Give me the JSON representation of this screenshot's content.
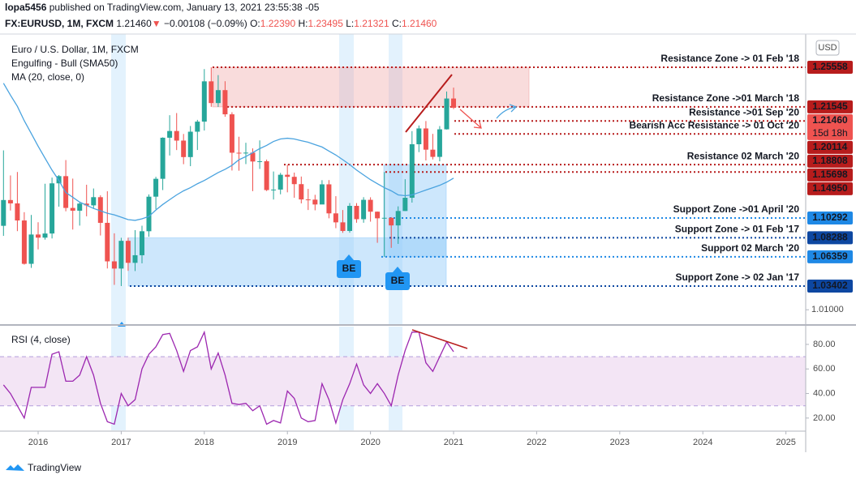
{
  "header": {
    "author": "lopa5456",
    "published": "published on TradingView.com, January 13, 2021 23:55:38 -05",
    "symbol": "FX:EURUSD, 1M, FXCM",
    "price": "1.21460",
    "arrow": "▼",
    "change": "−0.00108 (−0.09%)",
    "ohlc": [
      {
        "label": "O:",
        "value": "1.22390"
      },
      {
        "label": "H:",
        "value": "1.23495"
      },
      {
        "label": "L:",
        "value": "1.21321"
      },
      {
        "label": "C:",
        "value": "1.21460"
      }
    ]
  },
  "footer": "TradingView",
  "chart_data": [
    {
      "type": "candlestick",
      "title": "Euro / U.S. Dollar, 1M, FXCM",
      "study": "Engulfing - Bull (SMA50)",
      "axis_unit": "USD",
      "x": [
        2015.583,
        2015.667,
        2015.75,
        2015.833,
        2015.917,
        2016.0,
        2016.083,
        2016.167,
        2016.25,
        2016.333,
        2016.417,
        2016.5,
        2016.583,
        2016.667,
        2016.75,
        2016.833,
        2016.917,
        2017.0,
        2017.083,
        2017.167,
        2017.25,
        2017.333,
        2017.417,
        2017.5,
        2017.583,
        2017.667,
        2017.75,
        2017.833,
        2017.917,
        2018.0,
        2018.083,
        2018.167,
        2018.25,
        2018.333,
        2018.417,
        2018.5,
        2018.583,
        2018.667,
        2018.75,
        2018.833,
        2018.917,
        2019.0,
        2019.083,
        2019.167,
        2019.25,
        2019.333,
        2019.417,
        2019.5,
        2019.583,
        2019.667,
        2019.75,
        2019.833,
        2019.917,
        2020.0,
        2020.083,
        2020.167,
        2020.25,
        2020.333,
        2020.417,
        2020.5,
        2020.583,
        2020.667,
        2020.75,
        2020.833,
        2020.917,
        2021.0
      ],
      "open": [
        1.095,
        1.1211,
        1.1177,
        1.1004,
        1.0565,
        1.0862,
        1.083,
        1.0872,
        1.138,
        1.1453,
        1.1131,
        1.1103,
        1.1175,
        1.1157,
        1.124,
        1.098,
        1.059,
        1.0517,
        1.0798,
        1.0575,
        1.0652,
        1.0895,
        1.1245,
        1.1426,
        1.1842,
        1.191,
        1.1813,
        1.1646,
        1.1903,
        1.2005,
        1.2413,
        1.2193,
        1.2324,
        1.2079,
        1.169,
        1.1684,
        1.1691,
        1.1601,
        1.1604,
        1.1312,
        1.1317,
        1.1467,
        1.1446,
        1.1372,
        1.1217,
        1.1215,
        1.1166,
        1.137,
        1.1076,
        1.0985,
        1.0898,
        1.1152,
        1.1017,
        1.1213,
        1.1093,
        1.1026,
        1.1031,
        1.0954,
        1.11,
        1.1234,
        1.1776,
        1.1936,
        1.1721,
        1.1648,
        1.1927,
        1.2239
      ],
      "high": [
        1.1714,
        1.146,
        1.1495,
        1.1088,
        1.106,
        1.0986,
        1.1376,
        1.1438,
        1.1464,
        1.1616,
        1.1428,
        1.1186,
        1.1366,
        1.1328,
        1.1259,
        1.13,
        1.0874,
        1.0829,
        1.0829,
        1.0906,
        1.0951,
        1.1268,
        1.1446,
        1.1846,
        1.207,
        1.2092,
        1.188,
        1.1961,
        1.2023,
        1.2537,
        1.2555,
        1.2476,
        1.2414,
        1.21,
        1.1852,
        1.1791,
        1.1734,
        1.1815,
        1.1621,
        1.15,
        1.1486,
        1.157,
        1.1489,
        1.1449,
        1.1324,
        1.1264,
        1.1412,
        1.1413,
        1.125,
        1.111,
        1.118,
        1.118,
        1.124,
        1.1239,
        1.1095,
        1.1495,
        1.1038,
        1.1147,
        1.1422,
        1.1909,
        1.1966,
        1.2011,
        1.1881,
        1.196,
        1.231,
        1.23495
      ],
      "low": [
        1.0848,
        1.1105,
        1.0896,
        1.0557,
        1.0524,
        1.0711,
        1.081,
        1.0822,
        1.1144,
        1.1097,
        1.0912,
        1.0952,
        1.1046,
        1.1122,
        1.0852,
        1.0518,
        1.0352,
        1.034,
        1.0494,
        1.0492,
        1.057,
        1.0839,
        1.1118,
        1.1312,
        1.1662,
        1.1717,
        1.1574,
        1.1554,
        1.1718,
        1.1915,
        1.2155,
        1.2154,
        1.2054,
        1.151,
        1.1508,
        1.1575,
        1.1301,
        1.1526,
        1.1302,
        1.1216,
        1.1269,
        1.1289,
        1.1234,
        1.1177,
        1.111,
        1.1107,
        1.1181,
        1.1026,
        1.0926,
        1.0879,
        1.088,
        1.0981,
        1.0981,
        1.0992,
        1.0778,
        1.0636,
        1.0727,
        1.0767,
        1.11,
        1.1185,
        1.1696,
        1.1612,
        1.1622,
        1.1603,
        1.1925,
        1.21321
      ],
      "close": [
        1.1211,
        1.1177,
        1.1004,
        1.0565,
        1.0862,
        1.083,
        1.0872,
        1.138,
        1.1453,
        1.1131,
        1.1103,
        1.1175,
        1.1157,
        1.124,
        1.098,
        1.059,
        1.0517,
        1.0798,
        1.0575,
        1.0652,
        1.0895,
        1.1245,
        1.1426,
        1.1842,
        1.191,
        1.1813,
        1.1646,
        1.1903,
        1.2005,
        1.2413,
        1.2193,
        1.2324,
        1.2079,
        1.169,
        1.1684,
        1.1691,
        1.1601,
        1.1604,
        1.1312,
        1.1317,
        1.1467,
        1.1446,
        1.1372,
        1.1217,
        1.1215,
        1.1166,
        1.137,
        1.1076,
        1.0985,
        1.0898,
        1.1152,
        1.1017,
        1.1213,
        1.1093,
        1.1026,
        1.1031,
        1.0954,
        1.11,
        1.1234,
        1.1776,
        1.1936,
        1.1721,
        1.1648,
        1.1927,
        1.2239,
        1.2146
      ],
      "up_color": "#26a69a",
      "down_color": "#ef5350",
      "series": [
        {
          "name": "MA (20, close, 0)",
          "color": "#4aa3df",
          "values": [
            1.2394,
            1.2273,
            1.216,
            1.2014,
            1.1885,
            1.1756,
            1.1635,
            1.1514,
            1.1409,
            1.1287,
            1.1239,
            1.119,
            1.1158,
            1.1126,
            1.1102,
            1.1077,
            1.1061,
            1.1037,
            1.1013,
            1.1005,
            1.1021,
            1.1045,
            1.111,
            1.1166,
            1.1215,
            1.1263,
            1.1304,
            1.1336,
            1.1376,
            1.1409,
            1.1449,
            1.1489,
            1.1522,
            1.1562,
            1.1619,
            1.1651,
            1.1691,
            1.1732,
            1.1764,
            1.1804,
            1.1829,
            1.1837,
            1.1829,
            1.1812,
            1.1796,
            1.1772,
            1.1748,
            1.1707,
            1.1667,
            1.1619,
            1.157,
            1.1514,
            1.1465,
            1.1417,
            1.1376,
            1.1336,
            1.1304,
            1.1263,
            1.1255,
            1.1263,
            1.1287,
            1.1312,
            1.1336,
            1.136,
            1.1392,
            1.1433
          ]
        }
      ],
      "xlim": [
        2015.541,
        2025.238
      ],
      "xticks": [
        2016,
        2017,
        2018,
        2019,
        2020,
        2021,
        2022,
        2023,
        2024,
        2025
      ],
      "ylim": [
        0.9954,
        1.2892
      ],
      "yticks": [
        {
          "value": 1.01,
          "label": "1.01000"
        }
      ],
      "levels": [
        {
          "text": "Resistance Zone -> 01 Feb '18",
          "value": 1.25558,
          "label": "1.25558",
          "color": "#b71c1c"
        },
        {
          "text": "Resistance Zone ->01 March '18",
          "value": 1.21545,
          "label": "1.21545",
          "color": "#b71c1c"
        },
        {
          "text": "Resistance ->01 Sep '20",
          "value": 1.20114,
          "label": "1.20114",
          "color": "#b71c1c"
        },
        {
          "text": "Bearish Acc Resistance -> 01 Oct '20",
          "value": 1.18808,
          "label": "1.18808",
          "color": "#b71c1c"
        },
        {
          "text": "Resistance 02 March '20",
          "value": 1.15698,
          "label": "1.15698",
          "color": "#b71c1c"
        },
        {
          "value": 1.1495,
          "label": "1.14950",
          "color": "#b71c1c"
        },
        {
          "text": "Support Zone ->01 April '20",
          "value": 1.10292,
          "label": "1.10292",
          "color": "#1e88e5"
        },
        {
          "text": "Support Zone -> 01 Feb '17",
          "value": 1.08288,
          "label": "1.08288",
          "color": "#0d47a1"
        },
        {
          "text": "Support 02 March '20",
          "value": 1.06359,
          "label": "1.06359",
          "color": "#1e88e5"
        },
        {
          "text": "Support Zone -> 02 Jan '17",
          "value": 1.03402,
          "label": "1.03402",
          "color": "#0d47a1"
        }
      ],
      "last_price": {
        "value": 1.2146,
        "label": "1.21460",
        "countdown": "15d 18h",
        "color": "#ef5350"
      },
      "annotations": [
        "BE",
        "BE"
      ]
    },
    {
      "type": "line",
      "title": "RSI (4, close)",
      "series": [
        {
          "name": "RSI (4, close)",
          "color": "#9c27b0",
          "values": [
            47,
            40,
            30,
            20,
            45,
            45,
            45,
            72,
            74,
            50,
            50,
            55,
            70,
            55,
            32,
            17,
            15,
            40,
            30,
            35,
            60,
            72,
            78,
            88,
            89,
            75,
            58,
            75,
            78,
            90,
            60,
            73,
            55,
            32,
            31,
            32,
            26,
            30,
            15,
            18,
            16,
            42,
            36,
            20,
            17,
            18,
            48,
            35,
            16,
            35,
            48,
            64,
            47,
            40,
            48,
            40,
            30,
            55,
            75,
            90,
            90,
            65,
            58,
            70,
            82,
            74
          ]
        }
      ],
      "ylim": [
        10,
        94.5
      ],
      "yticks": [
        {
          "value": 20,
          "label": "20.00"
        },
        {
          "value": 40,
          "label": "40.00"
        },
        {
          "value": 60,
          "label": "60.00"
        },
        {
          "value": 80,
          "label": "80.00"
        }
      ],
      "band": [
        30,
        70
      ],
      "band_color": "#f3e5f5"
    }
  ]
}
